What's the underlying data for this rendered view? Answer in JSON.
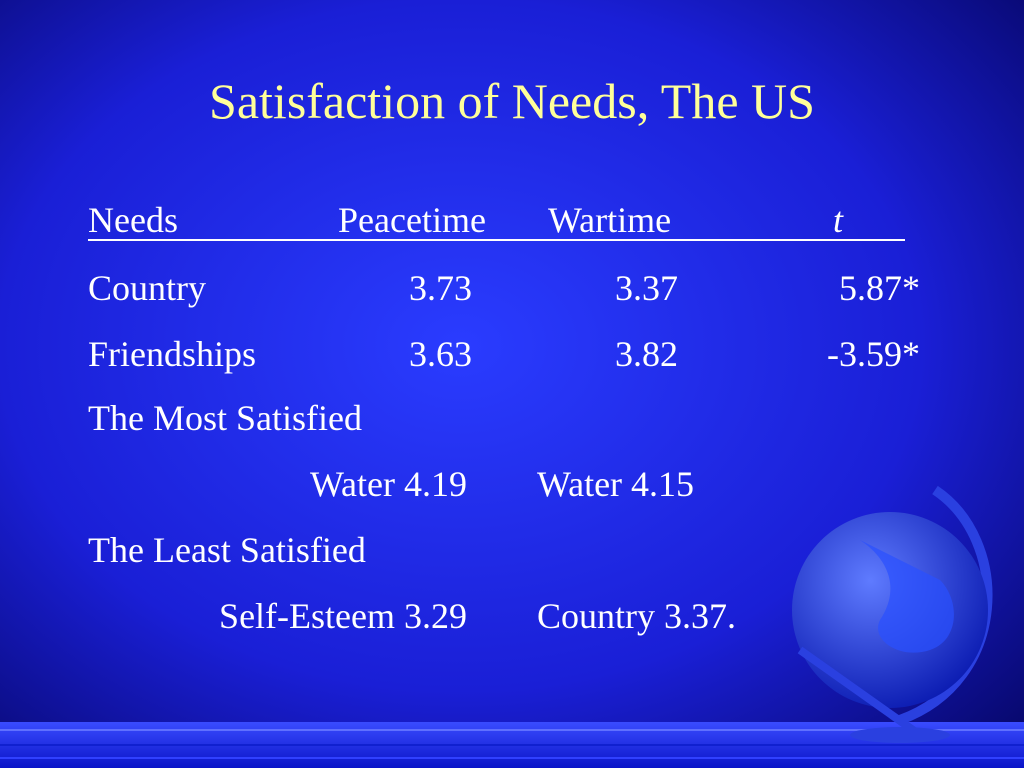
{
  "title": "Satisfaction of Needs, The US",
  "table": {
    "header": [
      "Needs",
      "Peacetime",
      "Wartime",
      "t"
    ],
    "rows": [
      [
        "Country",
        "3.73",
        "3.37",
        "5.87*"
      ],
      [
        "Friendships",
        "3.63",
        "3.82",
        "-3.59*"
      ]
    ]
  },
  "most_satisfied": {
    "label": "The Most Satisfied",
    "peacetime": "Water 4.19",
    "wartime": "Water 4.15"
  },
  "least_satisfied": {
    "label": "The Least Satisfied",
    "peacetime": "Self-Esteem 3.29",
    "wartime": "Country 3.37."
  }
}
